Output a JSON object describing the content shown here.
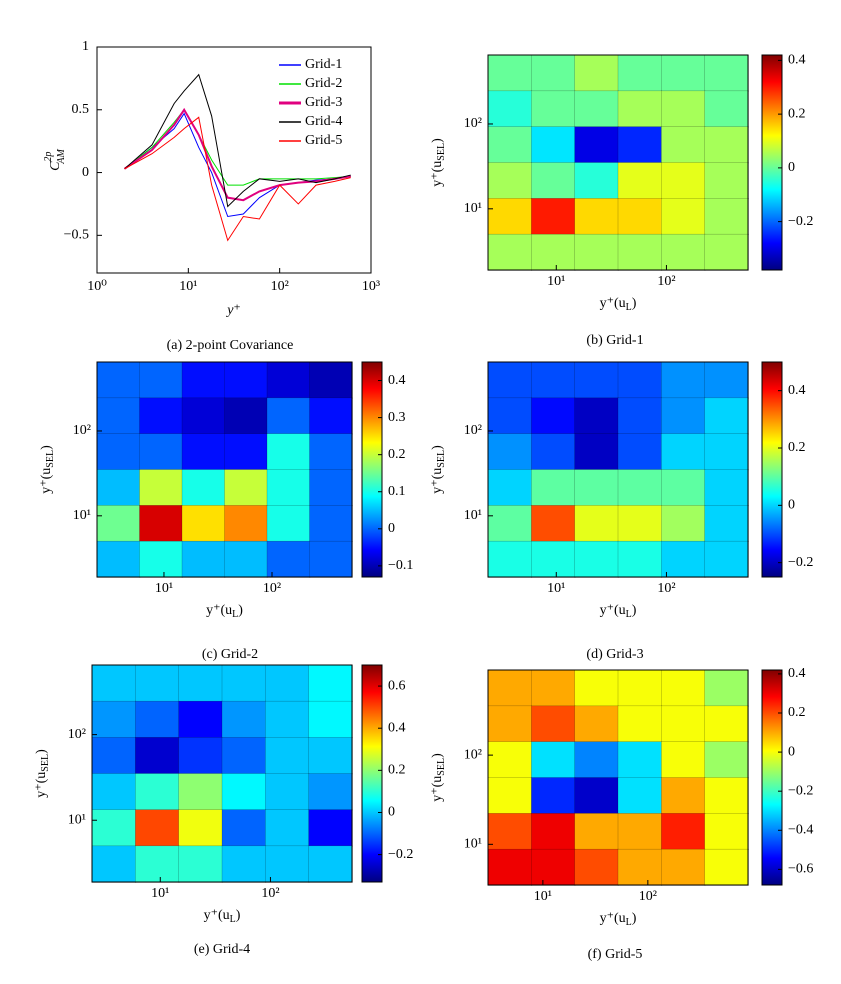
{
  "chart_data": [
    {
      "type": "line",
      "caption": "(a) 2-point Covariance",
      "x_label": "y⁺",
      "y_label": {
        "base": "C",
        "sup": "2p",
        "sub": "AM"
      },
      "log_x": true,
      "xlim": [
        1,
        1000
      ],
      "xticks": [
        {
          "value": 1,
          "label": "10⁰"
        },
        {
          "value": 10,
          "label": "10¹"
        },
        {
          "value": 100,
          "label": "10²"
        },
        {
          "value": 1000,
          "label": "10³"
        }
      ],
      "ylim": [
        -0.8,
        1
      ],
      "yticks": [
        {
          "value": -0.5,
          "label": "−0.5"
        },
        0,
        0.5,
        1
      ],
      "legend": "upper-right",
      "x": [
        2,
        4,
        7,
        9,
        13,
        18,
        27,
        40,
        60,
        100,
        160,
        250,
        400,
        600
      ],
      "series": [
        {
          "name": "Grid-1",
          "color": "#0000ff",
          "values": [
            0.03,
            0.2,
            0.35,
            0.47,
            0.2,
            0,
            -0.35,
            -0.33,
            -0.2,
            -0.1,
            -0.08,
            -0.06,
            -0.05,
            -0.03
          ]
        },
        {
          "name": "Grid-2",
          "color": "#00e000",
          "values": [
            0.03,
            0.2,
            0.4,
            0.5,
            0.3,
            0.1,
            -0.1,
            -0.1,
            -0.05,
            -0.05,
            -0.05,
            -0.05,
            -0.04,
            -0.03
          ]
        },
        {
          "name": "Grid-3",
          "color": "#e0007f",
          "values": [
            0.03,
            0.18,
            0.38,
            0.5,
            0.3,
            0.05,
            -0.2,
            -0.22,
            -0.15,
            -0.1,
            -0.08,
            -0.07,
            -0.05,
            -0.03
          ]
        },
        {
          "name": "Grid-4",
          "color": "#000000",
          "values": [
            0.03,
            0.22,
            0.55,
            0.65,
            0.78,
            0.45,
            -0.27,
            -0.15,
            -0.05,
            -0.07,
            -0.05,
            -0.08,
            -0.05,
            -0.02
          ]
        },
        {
          "name": "Grid-5",
          "color": "#ff0000",
          "values": [
            0.03,
            0.15,
            0.28,
            0.35,
            0.44,
            -0.1,
            -0.54,
            -0.35,
            -0.37,
            -0.1,
            -0.25,
            -0.1,
            -0.07,
            -0.04
          ]
        }
      ]
    },
    {
      "type": "contour",
      "caption": "(b) Grid-1",
      "x_label": [
        "y⁺(u",
        "L",
        ")"
      ],
      "y_label": [
        "y⁺(u",
        "SEL",
        ")"
      ],
      "log_x": true,
      "log_y": true,
      "xlim": [
        2.4,
        550
      ],
      "ylim": [
        1.9,
        650
      ],
      "xticks": [
        {
          "value": 10,
          "label": "10¹"
        },
        {
          "value": 100,
          "label": "10²"
        }
      ],
      "yticks": [
        {
          "value": 10,
          "label": "10¹"
        },
        {
          "value": 100,
          "label": "10²"
        }
      ],
      "colormap": "jet",
      "clim": [
        -0.38,
        0.42
      ],
      "cticks": [
        {
          "value": -0.2,
          "label": "−0.2"
        },
        0,
        0.2,
        0.4
      ],
      "z": [
        [
          0,
          0,
          0.05,
          0,
          0,
          0
        ],
        [
          -0.05,
          0,
          0,
          0.05,
          0.05,
          0
        ],
        [
          0,
          -0.1,
          -0.3,
          -0.25,
          0.05,
          0.05
        ],
        [
          0.05,
          0,
          -0.05,
          0.1,
          0.1,
          0.05
        ],
        [
          0.15,
          0.3,
          0.15,
          0.15,
          0.1,
          0.05
        ],
        [
          0.05,
          0.05,
          0.05,
          0.05,
          0.05,
          0.05
        ]
      ]
    },
    {
      "type": "contour",
      "caption": "(c) Grid-2",
      "x_label": [
        "y⁺(u",
        "L",
        ")"
      ],
      "y_label": [
        "y⁺(u",
        "SEL",
        ")"
      ],
      "log_x": true,
      "log_y": true,
      "xlim": [
        2.4,
        550
      ],
      "ylim": [
        1.9,
        650
      ],
      "xticks": [
        {
          "value": 10,
          "label": "10¹"
        },
        {
          "value": 100,
          "label": "10²"
        }
      ],
      "yticks": [
        {
          "value": 10,
          "label": "10¹"
        },
        {
          "value": 100,
          "label": "10²"
        }
      ],
      "colormap": "jet",
      "clim": [
        -0.13,
        0.45
      ],
      "cticks": [
        {
          "value": -0.1,
          "label": "−0.1"
        },
        0,
        0.1,
        0.2,
        0.3,
        0.4
      ],
      "z": [
        [
          0,
          0,
          -0.05,
          -0.05,
          -0.08,
          -0.1
        ],
        [
          0,
          -0.05,
          -0.08,
          -0.1,
          0,
          -0.05
        ],
        [
          0,
          0,
          -0.05,
          -0.05,
          0.1,
          0
        ],
        [
          0.05,
          0.2,
          0.1,
          0.2,
          0.1,
          0
        ],
        [
          0.15,
          0.4,
          0.25,
          0.3,
          0.1,
          0
        ],
        [
          0.05,
          0.1,
          0.05,
          0.05,
          0,
          0
        ]
      ]
    },
    {
      "type": "contour",
      "caption": "(d) Grid-3",
      "x_label": [
        "y⁺(u",
        "L",
        ")"
      ],
      "y_label": [
        "y⁺(u",
        "SEL",
        ")"
      ],
      "log_x": true,
      "log_y": true,
      "xlim": [
        2.4,
        550
      ],
      "ylim": [
        1.9,
        650
      ],
      "xticks": [
        {
          "value": 10,
          "label": "10¹"
        },
        {
          "value": 100,
          "label": "10²"
        }
      ],
      "yticks": [
        {
          "value": 10,
          "label": "10¹"
        },
        {
          "value": 100,
          "label": "10²"
        }
      ],
      "colormap": "jet",
      "clim": [
        -0.25,
        0.5
      ],
      "cticks": [
        {
          "value": -0.2,
          "label": "−0.2"
        },
        0,
        0.2,
        0.4
      ],
      "z": [
        [
          -0.1,
          -0.1,
          -0.1,
          -0.1,
          -0.05,
          -0.05
        ],
        [
          -0.1,
          -0.15,
          -0.2,
          -0.1,
          -0.05,
          0
        ],
        [
          -0.05,
          -0.1,
          -0.2,
          -0.1,
          0,
          0
        ],
        [
          0,
          0.1,
          0.1,
          0.1,
          0.1,
          0
        ],
        [
          0.1,
          0.35,
          0.2,
          0.2,
          0.15,
          0
        ],
        [
          0.05,
          0.05,
          0.05,
          0.05,
          0,
          0
        ]
      ]
    },
    {
      "type": "contour",
      "caption": "(e) Grid-4",
      "x_label": [
        "y⁺(u",
        "L",
        ")"
      ],
      "y_label": [
        "y⁺(u",
        "SEL",
        ")"
      ],
      "log_x": true,
      "log_y": true,
      "xlim": [
        2.4,
        550
      ],
      "ylim": [
        1.9,
        650
      ],
      "xticks": [
        {
          "value": 10,
          "label": "10¹"
        },
        {
          "value": 100,
          "label": "10²"
        }
      ],
      "yticks": [
        {
          "value": 10,
          "label": "10¹"
        },
        {
          "value": 100,
          "label": "10²"
        }
      ],
      "colormap": "jet",
      "clim": [
        -0.33,
        0.7
      ],
      "cticks": [
        {
          "value": -0.2,
          "label": "−0.2"
        },
        0,
        0.2,
        0.4,
        0.6
      ],
      "z": [
        [
          0,
          0,
          0,
          0,
          0,
          0.05
        ],
        [
          -0.05,
          -0.1,
          -0.2,
          -0.05,
          0,
          0.05
        ],
        [
          -0.1,
          -0.25,
          -0.15,
          -0.1,
          0,
          0
        ],
        [
          0,
          0.1,
          0.2,
          0.05,
          0,
          -0.05
        ],
        [
          0.1,
          0.5,
          0.3,
          -0.1,
          0,
          -0.2
        ],
        [
          0,
          0.1,
          0.1,
          0,
          0,
          0
        ]
      ]
    },
    {
      "type": "contour",
      "caption": "(f) Grid-5",
      "x_label": [
        "y⁺(u",
        "L",
        ")"
      ],
      "y_label": [
        "y⁺(u",
        "SEL",
        ")"
      ],
      "log_x": true,
      "log_y": true,
      "xlim": [
        3,
        900
      ],
      "ylim": [
        3.5,
        900
      ],
      "xticks": [
        {
          "value": 10,
          "label": "10¹"
        },
        {
          "value": 100,
          "label": "10²"
        }
      ],
      "yticks": [
        {
          "value": 10,
          "label": "10¹"
        },
        {
          "value": 100,
          "label": "10²"
        }
      ],
      "colormap": "jet",
      "clim": [
        -0.68,
        0.42
      ],
      "cticks": [
        {
          "value": -0.6,
          "label": "−0.6"
        },
        {
          "value": -0.4,
          "label": "−0.4"
        },
        {
          "value": -0.2,
          "label": "−0.2"
        },
        0,
        0.2,
        0.4
      ],
      "z": [
        [
          0.1,
          0.1,
          0,
          0,
          0,
          -0.1
        ],
        [
          0.1,
          0.2,
          0.1,
          0,
          0,
          0
        ],
        [
          0,
          -0.3,
          -0.4,
          -0.3,
          0,
          -0.1
        ],
        [
          0,
          -0.5,
          -0.6,
          -0.3,
          0.1,
          0
        ],
        [
          0.2,
          0.3,
          0.1,
          0.1,
          0.25,
          0
        ],
        [
          0.3,
          0.3,
          0.2,
          0.1,
          0.1,
          0
        ]
      ]
    }
  ]
}
